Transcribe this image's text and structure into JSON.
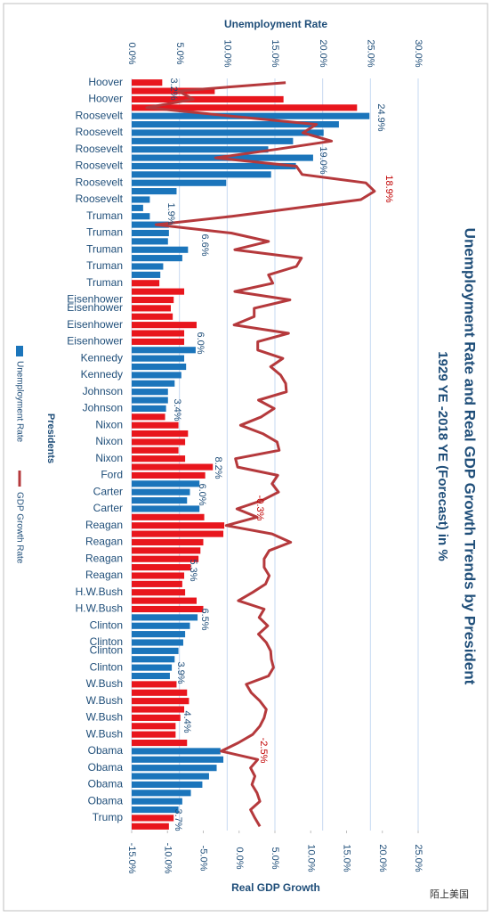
{
  "chart_data": {
    "type": "bar",
    "title": "Unemployment Rate and Real GDP Growth Trends by President",
    "subtitle": "1929 YE -2018 YE (Forecast) in %",
    "x_label": "Presidents",
    "y_label": "Unemployment Rate",
    "y2_label": "Real GDP Growth",
    "watermark": "陌上美国",
    "categories": [
      "Hoover",
      null,
      "Hoover",
      null,
      "Roosevelt",
      null,
      "Roosevelt",
      null,
      "Roosevelt",
      null,
      "Roosevelt",
      null,
      "Roosevelt",
      null,
      "Roosevelt",
      null,
      "Truman",
      null,
      "Truman",
      null,
      "Truman",
      null,
      "Truman",
      null,
      "Truman",
      null,
      "Eisenhower",
      "Eisenhower",
      null,
      "Eisenhower",
      null,
      "Eisenhower",
      null,
      "Kennedy",
      null,
      "Kennedy",
      null,
      "Johnson",
      null,
      "Johnson",
      null,
      "Nixon",
      null,
      "Nixon",
      null,
      "Nixon",
      null,
      "Ford",
      null,
      "Carter",
      null,
      "Carter",
      null,
      "Reagan",
      null,
      "Reagan",
      null,
      "Reagan",
      null,
      "Reagan",
      null,
      "H.W.Bush",
      null,
      "H.W.Bush",
      null,
      "Clinton",
      null,
      "Clinton",
      "Clinton",
      null,
      "Clinton",
      null,
      "W.Bush",
      null,
      "W.Bush",
      null,
      "W.Bush",
      null,
      "W.Bush",
      null,
      "Obama",
      null,
      "Obama",
      null,
      "Obama",
      null,
      "Obama",
      null,
      "Trump",
      null
    ],
    "series": [
      {
        "name": "Unemployment Rate",
        "color": "#1b75bb",
        "colors": [
          "#e8161d",
          "#e8161d",
          "#e8161d",
          "#e8161d",
          "#1b75bb",
          "#1b75bb",
          "#1b75bb",
          "#1b75bb",
          "#1b75bb",
          "#1b75bb",
          "#1b75bb",
          "#1b75bb",
          "#1b75bb",
          "#1b75bb",
          "#1b75bb",
          "#1b75bb",
          "#1b75bb",
          "#1b75bb",
          "#1b75bb",
          "#1b75bb",
          "#1b75bb",
          "#1b75bb",
          "#1b75bb",
          "#1b75bb",
          "#e8161d",
          "#e8161d",
          "#e8161d",
          "#e8161d",
          "#e8161d",
          "#e8161d",
          "#e8161d",
          "#e8161d",
          "#1b75bb",
          "#1b75bb",
          "#1b75bb",
          "#1b75bb",
          "#1b75bb",
          "#1b75bb",
          "#1b75bb",
          "#1b75bb",
          "#e8161d",
          "#e8161d",
          "#e8161d",
          "#e8161d",
          "#e8161d",
          "#e8161d",
          "#e8161d",
          "#e8161d",
          "#1b75bb",
          "#1b75bb",
          "#1b75bb",
          "#1b75bb",
          "#e8161d",
          "#e8161d",
          "#e8161d",
          "#e8161d",
          "#e8161d",
          "#e8161d",
          "#e8161d",
          "#e8161d",
          "#e8161d",
          "#e8161d",
          "#e8161d",
          "#e8161d",
          "#1b75bb",
          "#1b75bb",
          "#1b75bb",
          "#1b75bb",
          "#1b75bb",
          "#1b75bb",
          "#1b75bb",
          "#1b75bb",
          "#e8161d",
          "#e8161d",
          "#e8161d",
          "#e8161d",
          "#e8161d",
          "#e8161d",
          "#e8161d",
          "#e8161d",
          "#1b75bb",
          "#1b75bb",
          "#1b75bb",
          "#1b75bb",
          "#1b75bb",
          "#1b75bb",
          "#1b75bb",
          "#1b75bb",
          "#e8161d",
          "#e8161d"
        ],
        "values": [
          3.2,
          8.7,
          15.9,
          23.6,
          24.9,
          21.7,
          20.1,
          16.9,
          14.3,
          19.0,
          17.2,
          14.6,
          9.9,
          4.7,
          1.9,
          1.2,
          1.9,
          3.9,
          3.9,
          3.8,
          5.9,
          5.3,
          3.3,
          3.0,
          2.9,
          5.5,
          4.4,
          4.1,
          4.3,
          6.8,
          5.5,
          5.5,
          6.7,
          5.5,
          5.7,
          5.2,
          4.5,
          3.8,
          3.8,
          3.6,
          3.5,
          4.9,
          5.9,
          5.6,
          4.9,
          5.6,
          8.5,
          7.7,
          7.1,
          6.1,
          5.8,
          7.1,
          7.6,
          9.7,
          9.6,
          7.5,
          7.2,
          7.0,
          6.2,
          5.5,
          5.3,
          5.6,
          6.8,
          7.5,
          6.9,
          6.1,
          5.6,
          5.4,
          4.9,
          4.5,
          4.2,
          4.0,
          4.7,
          5.8,
          6.0,
          5.5,
          5.1,
          4.6,
          4.6,
          5.8,
          9.3,
          9.6,
          8.9,
          8.1,
          7.4,
          6.2,
          5.3,
          4.9,
          4.4,
          3.9
        ]
      },
      {
        "name": "GDP Growth Rate",
        "color": "#b5393c",
        "axis": "y2",
        "values": [
          6.5,
          -8.5,
          -6.4,
          -12.9,
          -1.2,
          10.8,
          8.9,
          12.9,
          5.1,
          -3.3,
          8.0,
          8.8,
          17.7,
          18.9,
          17.0,
          8.0,
          -1.0,
          -11.6,
          -1.1,
          4.1,
          -0.6,
          8.7,
          8.0,
          4.1,
          4.7,
          -0.6,
          7.1,
          2.1,
          2.1,
          -0.7,
          6.9,
          2.6,
          2.6,
          6.1,
          4.4,
          5.8,
          6.5,
          6.6,
          2.7,
          4.9,
          3.1,
          0.2,
          3.3,
          5.3,
          5.6,
          -0.5,
          -0.2,
          5.4,
          4.6,
          5.5,
          3.2,
          -0.3,
          2.5,
          -1.8,
          4.6,
          7.2,
          4.2,
          3.5,
          3.5,
          4.2,
          3.7,
          1.9,
          -0.1,
          3.5,
          2.8,
          4.0,
          2.7,
          3.8,
          4.4,
          4.5,
          4.8,
          4.1,
          1.0,
          1.7,
          2.9,
          3.8,
          3.5,
          2.9,
          1.9,
          -0.1,
          -2.5,
          2.6,
          1.6,
          2.2,
          1.8,
          2.5,
          2.9,
          1.6,
          2.2,
          2.9
        ]
      }
    ],
    "ylim": [
      0,
      30
    ],
    "yticks": [
      {
        "value": 0,
        "label": "0.0%"
      },
      {
        "value": 5,
        "label": "5.0%"
      },
      {
        "value": 10,
        "label": "10.0%"
      },
      {
        "value": 15,
        "label": "15.0%"
      },
      {
        "value": 20,
        "label": "20.0%"
      },
      {
        "value": 25,
        "label": "25.0%"
      },
      {
        "value": 30,
        "label": "30.0%"
      }
    ],
    "y2lim": [
      -15,
      25
    ],
    "y2ticks": [
      {
        "value": -15,
        "label": "-15.0%"
      },
      {
        "value": -10,
        "label": "-10.0%"
      },
      {
        "value": -5,
        "label": "-5.0%"
      },
      {
        "value": 0,
        "label": "0.0%"
      },
      {
        "value": 5,
        "label": "5.0%"
      },
      {
        "value": 10,
        "label": "10.0%"
      },
      {
        "value": 15,
        "label": "15.0%"
      },
      {
        "value": 20,
        "label": "20.0%"
      },
      {
        "value": 25,
        "label": "25.0%"
      }
    ],
    "grid": true,
    "annotations": [
      {
        "text": "3.2%",
        "color": "#1f4e79"
      },
      {
        "text": "24.9%",
        "color": "#1f4e79"
      },
      {
        "text": "19.0%",
        "color": "#1f4e79"
      },
      {
        "text": "1.9%",
        "color": "#1f4e79"
      },
      {
        "text": "6.6%",
        "color": "#1f4e79"
      },
      {
        "text": "6.0%",
        "color": "#1f4e79"
      },
      {
        "text": "3.4%",
        "color": "#1f4e79"
      },
      {
        "text": "8.2%",
        "color": "#1f4e79"
      },
      {
        "text": "6.0%",
        "color": "#1f4e79"
      },
      {
        "text": "5.3%",
        "color": "#1f4e79"
      },
      {
        "text": "6.5%",
        "color": "#1f4e79"
      },
      {
        "text": "3.9%",
        "color": "#1f4e79"
      },
      {
        "text": "4.4%",
        "color": "#1f4e79"
      },
      {
        "text": "3.7%",
        "color": "#1f4e79"
      },
      {
        "text": "18.9%",
        "color": "#c00000"
      },
      {
        "text": "-0.3%",
        "color": "#c00000"
      },
      {
        "text": "-2.5%",
        "color": "#c00000"
      }
    ]
  }
}
